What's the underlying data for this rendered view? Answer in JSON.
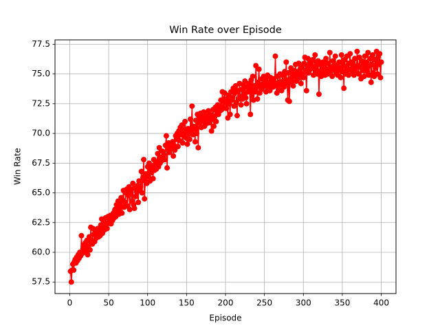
{
  "chart_data": {
    "type": "line",
    "title": "Win Rate over Episode",
    "x_label": "Episode",
    "y_label": "Win Rate",
    "x": [
      1,
      2,
      3,
      4,
      5,
      6,
      7,
      8,
      9,
      10,
      11,
      12,
      13,
      14,
      15,
      16,
      17,
      18,
      19,
      20,
      21,
      22,
      23,
      24,
      25,
      26,
      27,
      28,
      29,
      30,
      31,
      32,
      33,
      34,
      35,
      36,
      37,
      38,
      39,
      40,
      41,
      42,
      43,
      44,
      45,
      46,
      47,
      48,
      49,
      50,
      51,
      52,
      53,
      54,
      55,
      56,
      57,
      58,
      59,
      60,
      61,
      62,
      63,
      64,
      65,
      66,
      67,
      68,
      69,
      70,
      71,
      72,
      73,
      74,
      75,
      76,
      77,
      78,
      79,
      80,
      81,
      82,
      83,
      84,
      85,
      86,
      87,
      88,
      89,
      90,
      91,
      92,
      93,
      94,
      95,
      96,
      97,
      98,
      99,
      100,
      101,
      102,
      103,
      104,
      105,
      106,
      107,
      108,
      109,
      110,
      111,
      112,
      113,
      114,
      115,
      116,
      117,
      118,
      119,
      120,
      121,
      122,
      123,
      124,
      125,
      126,
      127,
      128,
      129,
      130,
      131,
      132,
      133,
      134,
      135,
      136,
      137,
      138,
      139,
      140,
      141,
      142,
      143,
      144,
      145,
      146,
      147,
      148,
      149,
      150,
      151,
      152,
      153,
      154,
      155,
      156,
      157,
      158,
      159,
      160,
      161,
      162,
      163,
      164,
      165,
      166,
      167,
      168,
      169,
      170,
      171,
      172,
      173,
      174,
      175,
      176,
      177,
      178,
      179,
      180,
      181,
      182,
      183,
      184,
      185,
      186,
      187,
      188,
      189,
      190,
      191,
      192,
      193,
      194,
      195,
      196,
      197,
      198,
      199,
      200,
      201,
      202,
      203,
      204,
      205,
      206,
      207,
      208,
      209,
      210,
      211,
      212,
      213,
      214,
      215,
      216,
      217,
      218,
      219,
      220,
      221,
      222,
      223,
      224,
      225,
      226,
      227,
      228,
      229,
      230,
      231,
      232,
      233,
      234,
      235,
      236,
      237,
      238,
      239,
      240,
      241,
      242,
      243,
      244,
      245,
      246,
      247,
      248,
      249,
      250,
      251,
      252,
      253,
      254,
      255,
      256,
      257,
      258,
      259,
      260,
      261,
      262,
      263,
      264,
      265,
      266,
      267,
      268,
      269,
      270,
      271,
      272,
      273,
      274,
      275,
      276,
      277,
      278,
      279,
      280,
      281,
      282,
      283,
      284,
      285,
      286,
      287,
      288,
      289,
      290,
      291,
      292,
      293,
      294,
      295,
      296,
      297,
      298,
      299,
      300,
      301,
      302,
      303,
      304,
      305,
      306,
      307,
      308,
      309,
      310,
      311,
      312,
      313,
      314,
      315,
      316,
      317,
      318,
      319,
      320,
      321,
      322,
      323,
      324,
      325,
      326,
      327,
      328,
      329,
      330,
      331,
      332,
      333,
      334,
      335,
      336,
      337,
      338,
      339,
      340,
      341,
      342,
      343,
      344,
      345,
      346,
      347,
      348,
      349,
      350,
      351,
      352,
      353,
      354,
      355,
      356,
      357,
      358,
      359,
      360,
      361,
      362,
      363,
      364,
      365,
      366,
      367,
      368,
      369,
      370,
      371,
      372,
      373,
      374,
      375,
      376,
      377,
      378,
      379,
      380,
      381,
      382,
      383,
      384,
      385,
      386,
      387,
      388,
      389,
      390,
      391,
      392,
      393,
      394,
      395,
      396,
      397,
      398,
      399,
      400
    ],
    "series": [
      {
        "name": "Win Rate",
        "color": "#ff0000",
        "values": [
          58.4,
          57.5,
          58.5,
          59.0,
          58.5,
          59.2,
          59.4,
          59.1,
          59.6,
          59.3,
          59.8,
          59.5,
          60.0,
          59.7,
          61.4,
          59.9,
          60.3,
          60.6,
          60.2,
          60.8,
          60.0,
          61.0,
          59.8,
          60.5,
          61.3,
          60.2,
          62.1,
          61.0,
          60.7,
          62.0,
          61.5,
          60.9,
          61.8,
          61.2,
          61.6,
          62.0,
          61.3,
          61.9,
          61.4,
          62.3,
          62.8,
          61.6,
          62.1,
          62.6,
          61.9,
          62.9,
          62.3,
          62.0,
          63.0,
          62.5,
          62.8,
          63.1,
          62.4,
          63.0,
          62.7,
          63.3,
          62.9,
          63.6,
          63.0,
          64.0,
          63.5,
          64.3,
          63.2,
          64.0,
          63.7,
          64.6,
          63.3,
          64.4,
          65.2,
          63.8,
          64.2,
          65.0,
          65.3,
          63.9,
          64.8,
          65.5,
          63.6,
          64.9,
          65.3,
          64.3,
          65.8,
          64.0,
          63.7,
          65.4,
          64.7,
          65.1,
          65.6,
          64.2,
          66.0,
          65.2,
          65.5,
          66.8,
          65.0,
          66.3,
          67.8,
          64.5,
          66.0,
          66.6,
          65.8,
          67.2,
          66.4,
          67.5,
          66.0,
          67.0,
          66.7,
          67.3,
          66.2,
          67.8,
          66.9,
          67.4,
          67.0,
          67.6,
          68.3,
          67.2,
          68.8,
          67.5,
          68.0,
          67.7,
          68.5,
          67.9,
          68.2,
          67.8,
          69.0,
          69.8,
          67.1,
          68.6,
          69.2,
          68.4,
          68.9,
          69.0,
          68.7,
          69.3,
          68.1,
          69.0,
          68.6,
          69.8,
          69.5,
          70.0,
          68.9,
          70.2,
          69.4,
          70.5,
          69.9,
          70.7,
          69.2,
          70.3,
          69.7,
          71.0,
          70.1,
          69.6,
          69.1,
          70.4,
          70.0,
          69.5,
          71.2,
          70.2,
          72.3,
          69.9,
          70.6,
          70.4,
          69.3,
          71.1,
          70.0,
          71.6,
          68.8,
          71.3,
          70.9,
          71.7,
          70.5,
          71.4,
          71.0,
          71.8,
          70.6,
          71.2,
          70.8,
          71.5,
          71.0,
          71.9,
          70.9,
          71.6,
          71.1,
          70.2,
          71.5,
          72.0,
          70.6,
          71.4,
          72.2,
          71.0,
          71.8,
          72.4,
          71.6,
          72.3,
          71.9,
          72.8,
          72.0,
          73.5,
          72.2,
          72.9,
          73.4,
          72.6,
          72.1,
          72.9,
          71.3,
          73.2,
          72.5,
          71.6,
          73.5,
          72.8,
          73.0,
          73.8,
          72.3,
          73.4,
          74.0,
          72.6,
          71.5,
          73.6,
          72.9,
          74.2,
          73.1,
          72.4,
          73.7,
          72.9,
          74.1,
          73.3,
          74.4,
          73.0,
          72.5,
          73.9,
          73.5,
          74.2,
          73.8,
          71.6,
          74.5,
          73.2,
          74.8,
          72.8,
          74.0,
          73.5,
          75.7,
          73.9,
          72.9,
          74.3,
          75.4,
          73.4,
          74.1,
          73.7,
          74.6,
          73.9,
          74.8,
          74.2,
          74.5,
          73.5,
          74.0,
          74.9,
          73.8,
          74.3,
          73.6,
          74.7,
          74.1,
          74.4,
          73.9,
          74.6,
          74.0,
          76.5,
          74.2,
          73.4,
          74.8,
          73.7,
          74.3,
          75.0,
          74.1,
          73.6,
          74.9,
          74.4,
          73.9,
          75.2,
          74.5,
          76.0,
          74.2,
          72.8,
          75.1,
          72.7,
          74.6,
          75.5,
          74.3,
          75.0,
          74.0,
          75.3,
          74.8,
          75.8,
          74.4,
          75.2,
          74.6,
          75.9,
          74.9,
          75.4,
          74.2,
          75.6,
          75.0,
          74.7,
          75.9,
          76.4,
          75.3,
          73.6,
          75.7,
          76.3,
          75.1,
          75.8,
          75.4,
          76.0,
          75.5,
          76.2,
          74.9,
          75.6,
          76.6,
          75.3,
          75.9,
          75.0,
          76.1,
          73.3,
          75.2,
          75.8,
          74.8,
          75.5,
          76.0,
          75.1,
          75.7,
          74.9,
          76.3,
          75.4,
          75.0,
          75.9,
          75.3,
          76.8,
          75.2,
          75.6,
          74.8,
          76.1,
          75.4,
          75.8,
          76.5,
          75.1,
          75.7,
          74.9,
          75.3,
          76.0,
          75.5,
          74.7,
          76.6,
          75.2,
          75.8,
          73.8,
          76.2,
          75.0,
          75.6,
          76.5,
          75.3,
          74.9,
          75.9,
          76.7,
          75.4,
          76.0,
          75.2,
          75.8,
          74.9,
          76.3,
          75.5,
          75.1,
          76.9,
          75.7,
          75.0,
          76.4,
          75.6,
          74.6,
          76.1,
          75.3,
          75.9,
          74.8,
          76.5,
          75.5,
          76.0,
          75.2,
          76.8,
          74.9,
          75.7,
          76.3,
          74.3,
          75.8,
          76.6,
          75.1,
          74.8,
          76.2,
          75.5,
          76.9,
          75.0,
          76.4,
          75.8,
          76.7,
          74.7,
          76.0
        ]
      }
    ],
    "xlim": [
      -18.95,
      418.95
    ],
    "ylim": [
      56.53,
      77.87
    ],
    "xticks": [
      0,
      50,
      100,
      150,
      200,
      250,
      300,
      350,
      400
    ],
    "yticks": [
      57.5,
      {
        "value": 60,
        "label": "60.0"
      },
      62.5,
      {
        "value": 65,
        "label": "65.0"
      },
      67.5,
      {
        "value": 70,
        "label": "70.0"
      },
      72.5,
      {
        "value": 75,
        "label": "75.0"
      },
      77.5
    ],
    "grid": true,
    "markers": true
  }
}
